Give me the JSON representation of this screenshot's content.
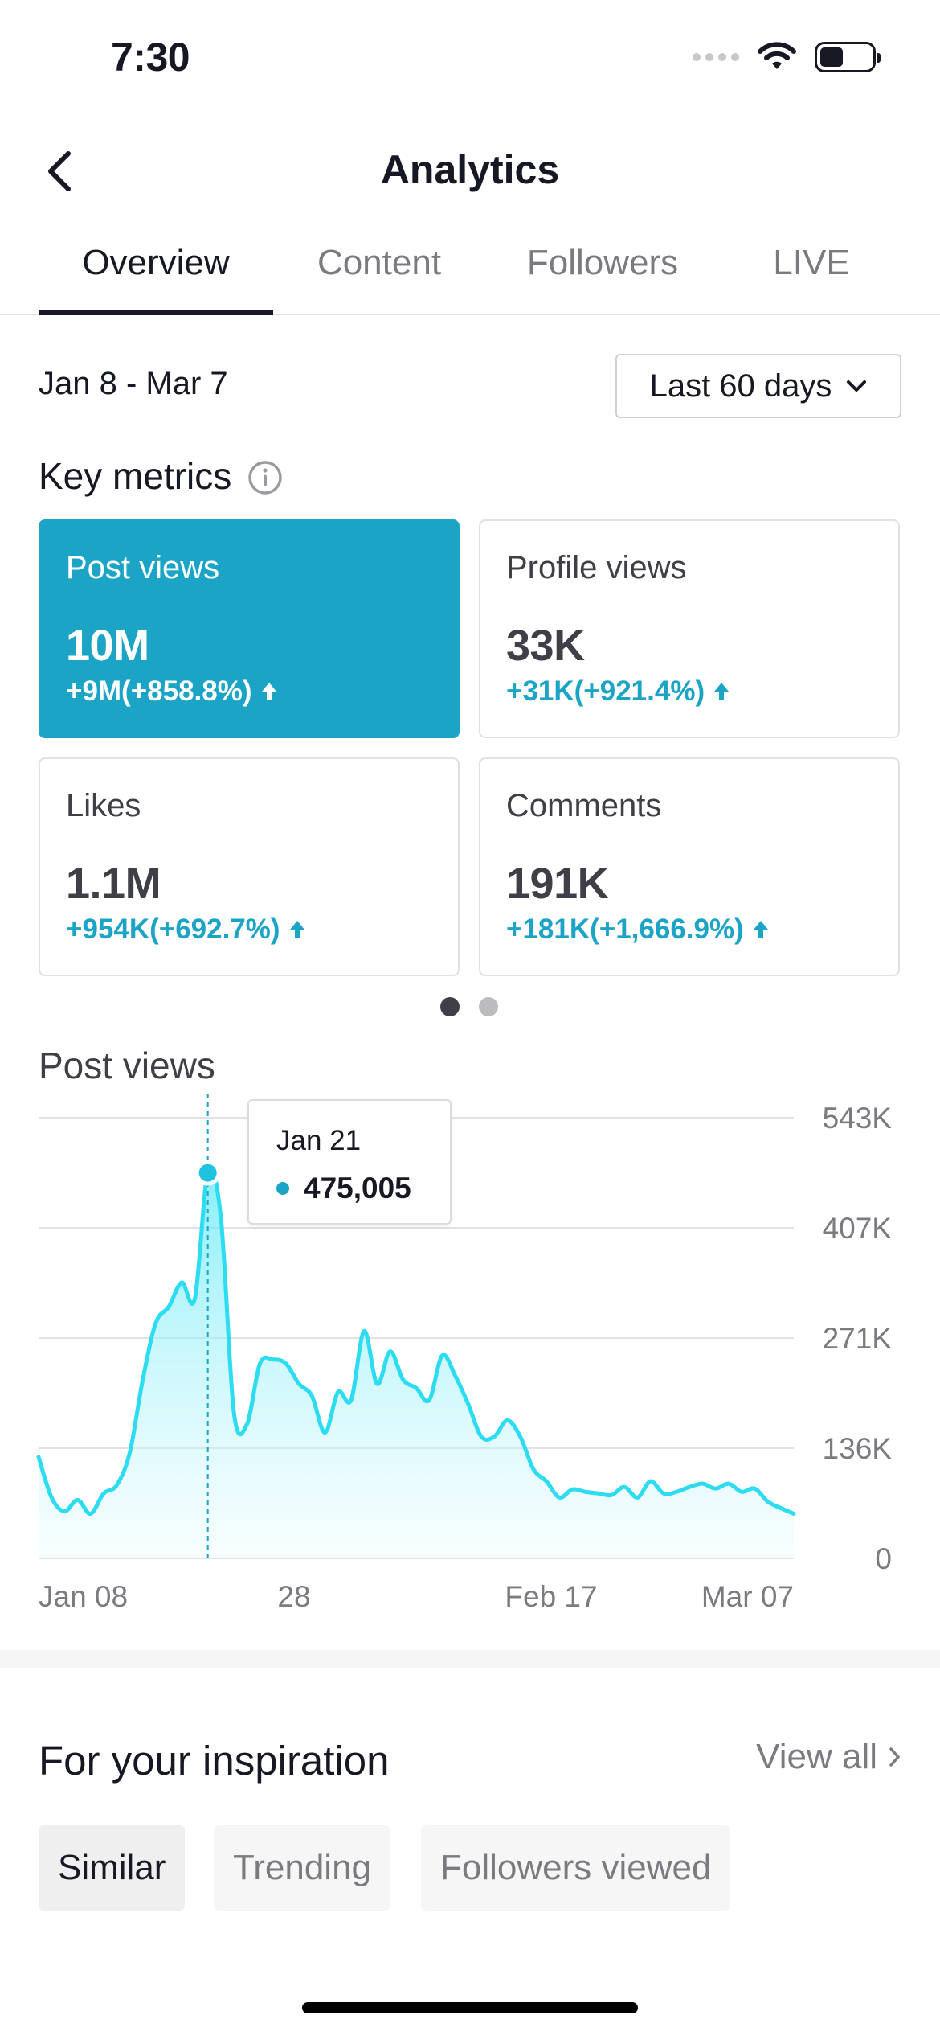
{
  "status_bar": {
    "time": "7:30"
  },
  "header": {
    "title": "Analytics"
  },
  "tabs": [
    {
      "label": "Overview",
      "active": true
    },
    {
      "label": "Content",
      "active": false
    },
    {
      "label": "Followers",
      "active": false
    },
    {
      "label": "LIVE",
      "active": false
    }
  ],
  "date_range": "Jan 8 - Mar 7",
  "range_select": {
    "value": "Last 60 days"
  },
  "key_metrics": {
    "title": "Key metrics",
    "cards": [
      {
        "label": "Post views",
        "value": "10M",
        "change": "+9M(+858.8%)",
        "selected": true
      },
      {
        "label": "Profile views",
        "value": "33K",
        "change": "+31K(+921.4%)",
        "selected": false
      },
      {
        "label": "Likes",
        "value": "1.1M",
        "change": "+954K(+692.7%)",
        "selected": false
      },
      {
        "label": "Comments",
        "value": "191K",
        "change": "+181K(+1,666.9%)",
        "selected": false
      }
    ],
    "pager": {
      "pages": 2,
      "current": 1
    }
  },
  "chart_section": {
    "title": "Post views"
  },
  "chart_data": {
    "type": "area",
    "title": "Post views",
    "x_tick_labels": [
      "Jan 08",
      "28",
      "Feb 17",
      "Mar 07"
    ],
    "y_tick_labels": [
      "543K",
      "407K",
      "271K",
      "136K",
      "0"
    ],
    "ylim": [
      0,
      543000
    ],
    "grid": true,
    "color": "#2ddcf0",
    "series": [
      {
        "values": [
          125000,
          75000,
          58000,
          72000,
          55000,
          80000,
          90000,
          130000,
          220000,
          290000,
          310000,
          340000,
          320000,
          475000,
          420000,
          180000,
          165000,
          240000,
          245000,
          240000,
          215000,
          200000,
          155000,
          205000,
          195000,
          280000,
          215000,
          255000,
          220000,
          210000,
          195000,
          250000,
          225000,
          190000,
          150000,
          150000,
          170000,
          150000,
          110000,
          95000,
          75000,
          85000,
          82000,
          80000,
          78000,
          88000,
          75000,
          95000,
          80000,
          82000,
          88000,
          92000,
          86000,
          92000,
          82000,
          86000,
          70000,
          62000,
          55000
        ]
      }
    ],
    "tooltip": {
      "date": "Jan 21",
      "value": "475,005"
    }
  },
  "inspiration": {
    "title": "For your inspiration",
    "view_all": "View all",
    "chips": [
      {
        "label": "Similar",
        "active": true
      },
      {
        "label": "Trending",
        "active": false
      },
      {
        "label": "Followers viewed",
        "active": false
      }
    ]
  }
}
